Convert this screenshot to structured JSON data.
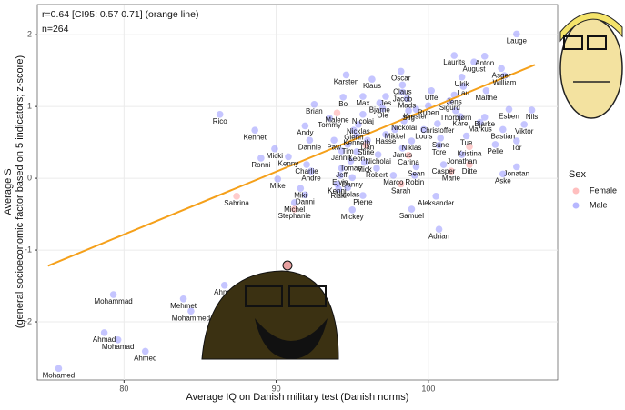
{
  "chart_data": {
    "type": "scatter",
    "annotations": [
      "r=0.64 [CI95: 0.57 0.71] (orange line)",
      "n=264"
    ],
    "x_label": "Average IQ on Danish military test (Danish norms)",
    "y_label": [
      "Average S",
      "(general socioeconomic factor based on 5 indicators; z-score)"
    ],
    "xlim": [
      74.3,
      108.5
    ],
    "ylim": [
      -2.81,
      2.42
    ],
    "xticks": [
      80,
      90,
      100
    ],
    "yticks": [
      -2,
      -1,
      0,
      1,
      2
    ],
    "grid": true,
    "legend_title": "Sex",
    "legend_position": "right",
    "fit_line": {
      "x": [
        75,
        107
      ],
      "values": [
        -1.22,
        1.58
      ],
      "color": "#f5a01a"
    },
    "series": [
      {
        "name": "Female",
        "color": "#ff8080",
        "labels": [
          "Malene",
          "Stine",
          "Kristina",
          "Carina",
          "Ditte",
          "Marie",
          "Sarah",
          "Sabrina",
          "Stephanie"
        ],
        "x": [
          94.0,
          95.9,
          102.7,
          98.7,
          102.7,
          101.5,
          98.2,
          87.4,
          91.2
        ],
        "values": [
          0.91,
          0.46,
          0.44,
          0.32,
          0.19,
          0.1,
          -0.08,
          -0.25,
          -0.43
        ]
      },
      {
        "name": "Male",
        "color": "#6f6fff",
        "labels": [
          "Lauge",
          "Laurits",
          "Anton",
          "August",
          "Asger",
          "William",
          "Oscar",
          "Karsten",
          "Klaus",
          "Ulrik",
          "Claus",
          "Lau",
          "Jacob",
          "Uffe",
          "Malthe",
          "Max",
          "Bo",
          "Jes",
          "Mads",
          "Jens",
          "Bjarne",
          "Sigurd",
          "Brian",
          "Ole",
          "Ruben",
          "Kresten",
          "Esben",
          "Nils",
          "Rico",
          "Nicolaj",
          "Stig",
          "Thorbjørn",
          "Tommy",
          "Bjarke",
          "Kåre",
          "Andy",
          "Nicklas",
          "Nickolai",
          "Markus",
          "Viktor",
          "Kennet",
          "Glenn",
          "Mikkel",
          "Christoffer",
          "Louis",
          "Bastian",
          "Kenneth",
          "Hasse",
          "Tue",
          "Dannie",
          "Paw",
          "Dan",
          "Niklas",
          "Sune",
          "Tor",
          "Tim",
          "Tore",
          "Pelle",
          "Micki",
          "Janus",
          "Jannik",
          "Leon",
          "Nicholai",
          "Jonathan",
          "Ronni",
          "Kenny",
          "Tomas",
          "Mick",
          "Casper",
          "Jonatan",
          "Charlie",
          "Jeff",
          "Sean",
          "Robert",
          "Andre",
          "Aske",
          "Marco",
          "Robin",
          "Ejvin",
          "Danny",
          "Mike",
          "Kenni",
          "Miki",
          "Nicolas",
          "Ricki",
          "Danni",
          "Pierre",
          "Aleksander",
          "Michel",
          "Samuel",
          "Mickey",
          "Adrian",
          "Ahmet",
          "Mohammad",
          "Mehmet",
          "Mohammed",
          "Ahmad",
          "Mohamad",
          "Ahmed",
          "Mohamed"
        ],
        "x": [
          105.8,
          101.7,
          103.7,
          103.0,
          104.8,
          105.0,
          98.2,
          94.6,
          96.3,
          102.2,
          98.3,
          102.3,
          98.3,
          100.2,
          103.8,
          95.7,
          94.4,
          97.2,
          98.6,
          101.7,
          96.8,
          101.4,
          92.5,
          97.0,
          100.0,
          99.2,
          105.3,
          106.8,
          86.3,
          95.7,
          98.7,
          101.8,
          93.5,
          103.7,
          102.1,
          91.9,
          95.4,
          98.4,
          103.4,
          106.3,
          88.6,
          95.1,
          97.8,
          100.6,
          99.7,
          104.9,
          95.3,
          97.2,
          102.5,
          92.2,
          93.8,
          96.0,
          98.9,
          100.8,
          105.8,
          94.7,
          100.7,
          104.4,
          89.9,
          98.3,
          94.3,
          95.3,
          96.7,
          102.2,
          89.0,
          90.8,
          94.9,
          95.8,
          101.0,
          105.8,
          92.0,
          94.3,
          99.2,
          96.6,
          92.3,
          104.9,
          97.7,
          99.1,
          94.2,
          95.0,
          90.1,
          94.0,
          91.6,
          94.7,
          94.1,
          91.9,
          95.7,
          100.5,
          91.2,
          98.9,
          95.0,
          100.7,
          86.6,
          79.3,
          83.9,
          84.4,
          78.7,
          79.6,
          81.4,
          75.7
        ],
        "values": [
          2.01,
          1.71,
          1.7,
          1.62,
          1.53,
          1.43,
          1.49,
          1.44,
          1.38,
          1.41,
          1.3,
          1.28,
          1.2,
          1.22,
          1.22,
          1.14,
          1.13,
          1.14,
          1.11,
          1.16,
          1.05,
          1.08,
          1.03,
          0.97,
          1.01,
          0.96,
          0.96,
          0.95,
          0.89,
          0.89,
          0.94,
          0.94,
          0.84,
          0.85,
          0.86,
          0.73,
          0.75,
          0.8,
          0.78,
          0.75,
          0.67,
          0.67,
          0.68,
          0.76,
          0.68,
          0.68,
          0.59,
          0.61,
          0.59,
          0.53,
          0.53,
          0.53,
          0.52,
          0.56,
          0.52,
          0.47,
          0.46,
          0.47,
          0.41,
          0.42,
          0.38,
          0.37,
          0.33,
          0.33,
          0.28,
          0.3,
          0.24,
          0.22,
          0.19,
          0.16,
          0.19,
          0.14,
          0.16,
          0.14,
          0.1,
          0.06,
          0.04,
          0.04,
          0.04,
          0.01,
          -0.01,
          -0.08,
          -0.14,
          -0.13,
          -0.15,
          -0.23,
          -0.24,
          -0.25,
          -0.34,
          -0.43,
          -0.44,
          -0.71,
          -1.49,
          -1.62,
          -1.68,
          -1.85,
          -2.15,
          -2.25,
          -2.41,
          -2.65
        ]
      }
    ]
  }
}
